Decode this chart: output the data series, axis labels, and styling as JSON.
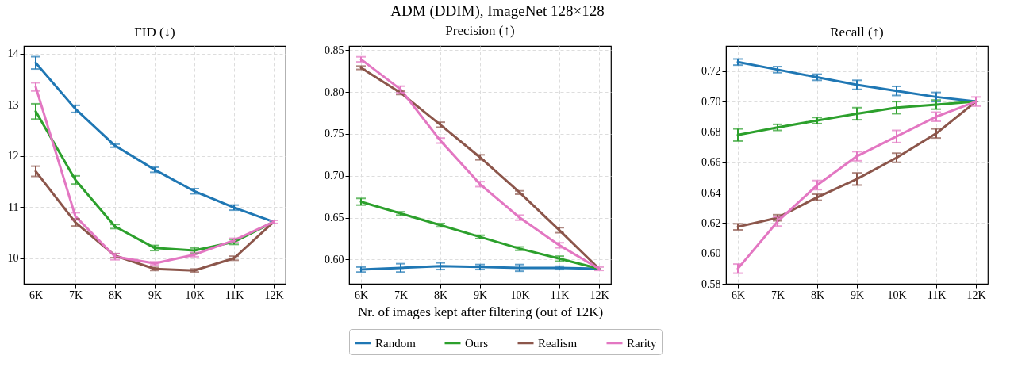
{
  "chart_data": [
    {
      "type": "line",
      "title": "FID (↓)",
      "annotations": [
        "ADM (DDIM), ImageNet 128×128"
      ],
      "categories": [
        "6K",
        "7K",
        "8K",
        "9K",
        "10K",
        "11K",
        "12K"
      ],
      "ylim": [
        9.5,
        14.15
      ],
      "yticks": [
        10,
        11,
        12,
        13,
        14
      ],
      "grid": true,
      "marker": "none",
      "series": [
        {
          "color": "#1f77b4",
          "values": [
            13.82,
            12.92,
            12.2,
            11.73,
            11.31,
            10.99,
            10.71
          ],
          "errors": [
            0.12,
            0.07,
            0.03,
            0.05,
            0.05,
            0.05,
            null
          ]
        },
        {
          "color": "#2ca02c",
          "values": [
            12.87,
            11.53,
            10.62,
            10.2,
            10.15,
            10.32,
            10.71
          ],
          "errors": [
            0.15,
            0.08,
            0.04,
            0.05,
            0.05,
            0.05,
            null
          ]
        },
        {
          "color": "#8c564b",
          "values": [
            11.7,
            10.7,
            10.05,
            9.79,
            9.76,
            10.0,
            10.71
          ],
          "errors": [
            0.1,
            0.07,
            0.04,
            0.03,
            0.03,
            0.04,
            null
          ]
        },
        {
          "color": "#e377c2",
          "values": [
            13.35,
            10.82,
            10.03,
            9.9,
            10.07,
            10.35,
            10.71
          ],
          "errors": [
            0.08,
            0.07,
            0.06,
            0.03,
            0.04,
            0.04,
            0.03
          ]
        }
      ]
    },
    {
      "type": "line",
      "title": "Precision (↑)",
      "xlabel": "Nr. of images kept after filtering (out of 12K)",
      "categories": [
        "6K",
        "7K",
        "8K",
        "9K",
        "10K",
        "11K",
        "12K"
      ],
      "ylim": [
        0.571,
        0.855
      ],
      "yticks": [
        {
          "value": 0.6,
          "label": "0.60"
        },
        {
          "value": 0.65,
          "label": "0.65"
        },
        {
          "value": 0.7,
          "label": "0.70"
        },
        {
          "value": 0.75,
          "label": "0.75"
        },
        {
          "value": 0.8,
          "label": "0.80"
        },
        {
          "value": 0.85,
          "label": "0.85"
        }
      ],
      "grid": true,
      "marker": "none",
      "legend": "bottom",
      "series": [
        {
          "name": "Random",
          "color": "#1f77b4",
          "values": [
            0.588,
            0.59,
            0.592,
            0.591,
            0.59,
            0.59,
            0.589
          ],
          "errors": [
            0.003,
            0.005,
            0.004,
            0.003,
            0.004,
            0.002,
            null
          ]
        },
        {
          "name": "Ours",
          "color": "#2ca02c",
          "values": [
            0.669,
            0.655,
            0.641,
            0.627,
            0.613,
            0.601,
            0.589
          ],
          "errors": [
            0.004,
            0.002,
            0.002,
            0.002,
            0.002,
            0.003,
            null
          ]
        },
        {
          "name": "Realism",
          "color": "#8c564b",
          "values": [
            0.829,
            0.799,
            0.761,
            0.722,
            0.68,
            0.635,
            0.589
          ],
          "errors": [
            0.002,
            0.002,
            0.003,
            0.003,
            0.002,
            0.003,
            null
          ]
        },
        {
          "name": "Rarity",
          "color": "#e377c2",
          "values": [
            0.839,
            0.803,
            0.742,
            0.69,
            0.65,
            0.617,
            0.589
          ],
          "errors": [
            0.003,
            0.004,
            0.003,
            0.003,
            0.003,
            0.003,
            0.002
          ]
        }
      ]
    },
    {
      "type": "line",
      "title": "Recall (↑)",
      "categories": [
        "6K",
        "7K",
        "8K",
        "9K",
        "10K",
        "11K",
        "12K"
      ],
      "ylim": [
        0.58,
        0.7366
      ],
      "yticks": [
        {
          "value": 0.58,
          "label": "0.58"
        },
        {
          "value": 0.6,
          "label": "0.60"
        },
        {
          "value": 0.62,
          "label": "0.62"
        },
        {
          "value": 0.64,
          "label": "0.64"
        },
        {
          "value": 0.66,
          "label": "0.66"
        },
        {
          "value": 0.68,
          "label": "0.68"
        },
        {
          "value": 0.7,
          "label": "0.70"
        },
        {
          "value": 0.72,
          "label": "0.72"
        }
      ],
      "grid": true,
      "marker": "none",
      "series": [
        {
          "color": "#1f77b4",
          "values": [
            0.726,
            0.721,
            0.716,
            0.711,
            0.707,
            0.703,
            0.7
          ],
          "errors": [
            0.002,
            0.002,
            0.002,
            0.003,
            0.003,
            0.003,
            null
          ]
        },
        {
          "color": "#2ca02c",
          "values": [
            0.678,
            0.683,
            0.6875,
            0.692,
            0.696,
            0.698,
            0.7
          ],
          "errors": [
            0.004,
            0.002,
            0.002,
            0.004,
            0.004,
            0.003,
            null
          ]
        },
        {
          "color": "#8c564b",
          "values": [
            0.6175,
            0.6235,
            0.637,
            0.649,
            0.663,
            0.679,
            0.7
          ],
          "errors": [
            0.002,
            0.002,
            0.002,
            0.004,
            0.003,
            0.003,
            null
          ]
        },
        {
          "color": "#e377c2",
          "values": [
            0.59,
            0.621,
            0.645,
            0.664,
            0.677,
            0.69,
            0.7
          ],
          "errors": [
            0.003,
            0.003,
            0.003,
            0.003,
            0.004,
            0.003,
            0.003
          ]
        }
      ]
    }
  ]
}
